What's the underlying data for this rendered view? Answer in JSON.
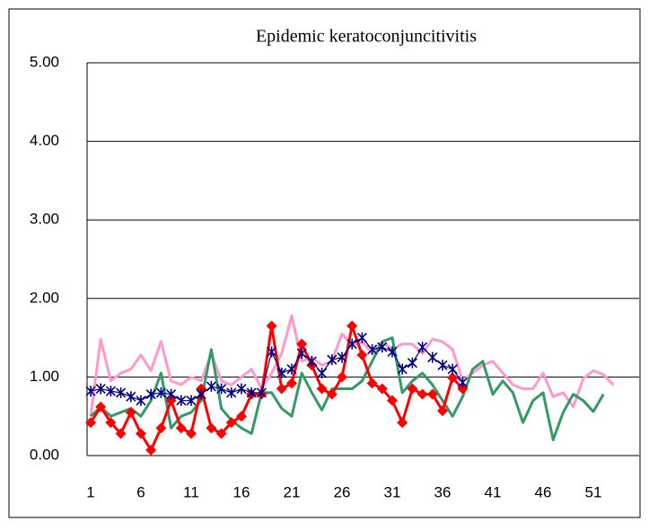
{
  "chart_data": {
    "type": "line",
    "title": "Epidemic keratoconjuncitivitis",
    "categories": [
      1,
      null,
      null,
      null,
      null,
      6,
      null,
      null,
      null,
      null,
      11,
      null,
      null,
      null,
      null,
      16,
      null,
      null,
      null,
      null,
      21,
      null,
      null,
      null,
      null,
      26,
      null,
      null,
      null,
      null,
      31,
      null,
      null,
      null,
      null,
      36,
      null,
      null,
      null,
      null,
      41,
      null,
      null,
      null,
      null,
      46,
      null,
      null,
      null,
      null,
      51,
      null,
      null
    ],
    "ylim": [
      0,
      5
    ],
    "yticks": [
      {
        "value": 0,
        "label": "0.00"
      },
      {
        "value": 1,
        "label": "1.00"
      },
      {
        "value": 2,
        "label": "2.00"
      },
      {
        "value": 3,
        "label": "3.00"
      },
      {
        "value": 4,
        "label": "4.00"
      },
      {
        "value": 5,
        "label": "5.00"
      }
    ],
    "grid": true,
    "series": [
      {
        "color": "#ff99cc",
        "width": 3,
        "marker": "none",
        "values": [
          0.5,
          1.48,
          0.95,
          1.05,
          1.1,
          1.28,
          1.08,
          1.45,
          0.95,
          0.9,
          1.0,
          0.95,
          1.3,
          0.95,
          0.9,
          1.0,
          1.1,
          0.85,
          1.05,
          1.3,
          1.78,
          1.2,
          1.25,
          1.15,
          1.2,
          1.55,
          1.4,
          1.45,
          1.3,
          1.45,
          1.35,
          1.42,
          1.42,
          1.3,
          1.48,
          1.45,
          1.35,
          0.95,
          1.05,
          1.15,
          1.2,
          1.05,
          0.9,
          0.85,
          0.85,
          1.05,
          0.75,
          0.8,
          0.62,
          0.98,
          1.08,
          1.03,
          0.9
        ]
      },
      {
        "color": "#339966",
        "width": 3,
        "marker": "none",
        "values": [
          0.5,
          0.62,
          0.5,
          0.55,
          0.6,
          0.5,
          0.7,
          1.05,
          0.35,
          0.5,
          0.55,
          0.7,
          1.35,
          0.6,
          0.45,
          0.35,
          0.28,
          0.8,
          0.8,
          0.6,
          0.5,
          1.05,
          0.8,
          0.58,
          0.85,
          0.85,
          0.85,
          0.95,
          1.2,
          1.45,
          1.5,
          0.8,
          0.95,
          1.05,
          0.9,
          0.7,
          0.5,
          0.75,
          1.1,
          1.2,
          0.78,
          0.95,
          0.8,
          0.42,
          0.7,
          0.8,
          0.2,
          0.55,
          0.78,
          0.7,
          0.56,
          0.78,
          null
        ]
      },
      {
        "color": "#ff0000",
        "width": 3,
        "marker": "diamond",
        "values": [
          0.42,
          0.62,
          0.42,
          0.28,
          0.55,
          0.28,
          0.07,
          0.35,
          0.7,
          0.35,
          0.28,
          0.85,
          0.35,
          0.28,
          0.42,
          0.5,
          0.78,
          0.78,
          1.65,
          0.85,
          0.92,
          1.42,
          1.15,
          0.85,
          0.78,
          1.0,
          1.65,
          1.28,
          0.92,
          0.85,
          0.7,
          0.42,
          0.85,
          0.78,
          0.78,
          0.57,
          0.99,
          0.85,
          null,
          null,
          null,
          null,
          null,
          null,
          null,
          null,
          null,
          null,
          null,
          null,
          null,
          null,
          null
        ]
      },
      {
        "color": "#000080",
        "width": 1.2,
        "marker": "asterisk",
        "values": [
          0.82,
          0.85,
          0.82,
          0.8,
          0.75,
          0.7,
          0.78,
          0.8,
          0.78,
          0.7,
          0.7,
          0.78,
          0.88,
          0.85,
          0.8,
          0.85,
          0.8,
          0.8,
          1.32,
          1.05,
          1.1,
          1.3,
          1.2,
          1.05,
          1.22,
          1.25,
          1.42,
          1.5,
          1.35,
          1.38,
          1.32,
          1.1,
          1.18,
          1.38,
          1.25,
          1.15,
          1.1,
          0.93,
          null,
          null,
          null,
          null,
          null,
          null,
          null,
          null,
          null,
          null,
          null,
          null,
          null,
          null,
          null
        ]
      }
    ]
  }
}
